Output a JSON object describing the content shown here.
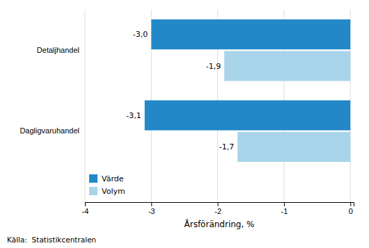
{
  "chart_data": {
    "type": "bar",
    "orientation": "horizontal",
    "categories": [
      "Dagligvaruhandel",
      "Detaljhandel"
    ],
    "series": [
      {
        "name": "Värde",
        "color": "#2288C8",
        "values": [
          -3.1,
          -3.0
        ],
        "value_labels": [
          "-3,1",
          "-3,0"
        ]
      },
      {
        "name": "Volym",
        "color": "#A8D4EA",
        "values": [
          -1.7,
          -1.9
        ],
        "value_labels": [
          "-1,7",
          "-1,9"
        ]
      }
    ],
    "xlim": [
      -4,
      0.05
    ],
    "xticks": [
      -4,
      -3,
      -2,
      -1,
      0
    ],
    "xlabel": "Årsförändring, %",
    "source": "Källa:  Statistikcentralen",
    "grid": true,
    "legend": "lower left",
    "data_labels": true
  }
}
